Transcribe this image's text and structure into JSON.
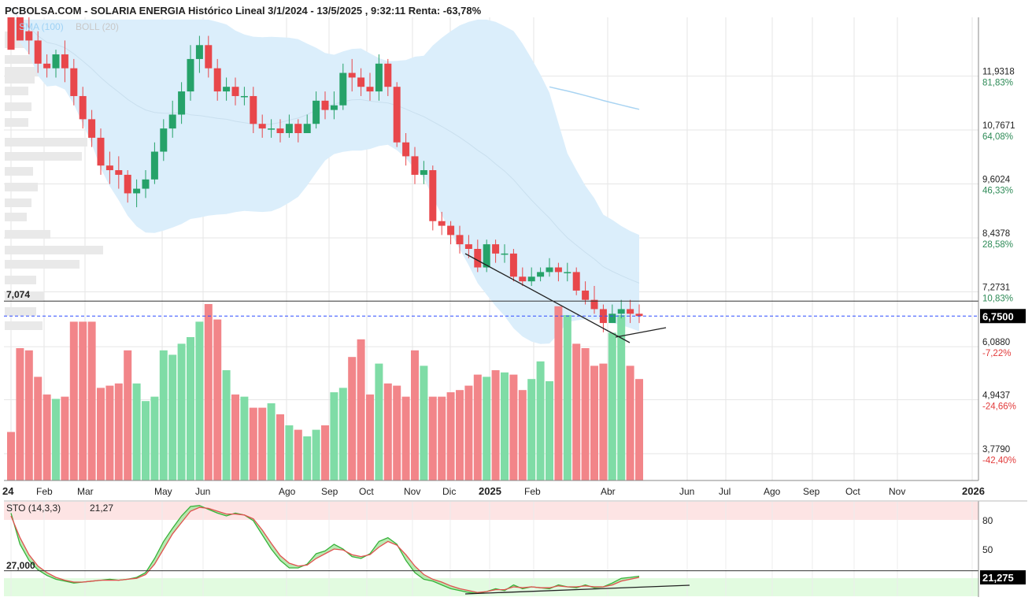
{
  "title": "PCBOLSA.COM - SOLARIA ENERGIA Histórico Lineal 3/1/2024 - 13/5/2025 , 9:32:11 Renta: -63,78%",
  "indicator_legend": {
    "sma": "SMA (100)",
    "boll": "BOLL (20)"
  },
  "colors": {
    "up": "#26a269",
    "down": "#e8474b",
    "vol_up": "#7fdca6",
    "vol_down": "#f28589",
    "boll_fill": "#dbeefb",
    "sma_line": "#a9d4f2",
    "current_line": "#2f4bff",
    "stoch_k": "#38b23a",
    "stoch_d": "#e25050",
    "overbought_fill": "#fde4e4",
    "oversold_fill": "#e2fbe0",
    "pct_pos": "#2e8b57",
    "pct_neg": "#e23b3b"
  },
  "price_axis": [
    {
      "price": "11,9318",
      "pct": "81,83%"
    },
    {
      "price": "10,7671",
      "pct": "64,08%"
    },
    {
      "price": "9,6024",
      "pct": "46,33%"
    },
    {
      "price": "8,4378",
      "pct": "28,58%"
    },
    {
      "price": "7,2731",
      "pct": "10,83%"
    },
    {
      "price": "6,0880",
      "pct": "-7,22%"
    },
    {
      "price": "4,9437",
      "pct": "-24,66%"
    },
    {
      "price": "3,7790",
      "pct": "-42,40%"
    }
  ],
  "reference_line_label": "7,074",
  "current_price_label": "6,7500",
  "time_axis": [
    {
      "label": "24",
      "bold": true
    },
    {
      "label": "Feb"
    },
    {
      "label": "Mar"
    },
    {
      "label": "May"
    },
    {
      "label": "Jun"
    },
    {
      "label": "Ago"
    },
    {
      "label": "Sep"
    },
    {
      "label": "Oct"
    },
    {
      "label": "Nov"
    },
    {
      "label": "Dic"
    },
    {
      "label": "2025",
      "bold": true
    },
    {
      "label": "Feb"
    },
    {
      "label": "Abr"
    },
    {
      "label": "Jun"
    },
    {
      "label": "Jul"
    },
    {
      "label": "Ago"
    },
    {
      "label": "Sep"
    },
    {
      "label": "Oct"
    },
    {
      "label": "Nov"
    },
    {
      "label": "2026",
      "bold": true
    }
  ],
  "stoch": {
    "legend": "STO (14,3,3)",
    "legend_value": "21,27",
    "levels": [
      "80",
      "50"
    ],
    "ref_label": "27,000",
    "current_label": "21,275"
  },
  "chart_data": {
    "type": "candlestick",
    "interval": "weekly",
    "x": [
      "2024-01-05",
      "2024-01-12",
      "2024-01-19",
      "2024-01-26",
      "2024-02-02",
      "2024-02-09",
      "2024-02-16",
      "2024-02-23",
      "2024-03-01",
      "2024-03-08",
      "2024-03-15",
      "2024-03-22",
      "2024-03-29",
      "2024-04-05",
      "2024-04-12",
      "2024-04-19",
      "2024-04-26",
      "2024-05-03",
      "2024-05-10",
      "2024-05-17",
      "2024-05-24",
      "2024-05-31",
      "2024-06-07",
      "2024-06-14",
      "2024-06-21",
      "2024-06-28",
      "2024-07-05",
      "2024-07-12",
      "2024-07-19",
      "2024-07-26",
      "2024-08-02",
      "2024-08-09",
      "2024-08-16",
      "2024-08-23",
      "2024-08-30",
      "2024-09-06",
      "2024-09-13",
      "2024-09-20",
      "2024-09-27",
      "2024-10-04",
      "2024-10-11",
      "2024-10-18",
      "2024-10-25",
      "2024-11-01",
      "2024-11-08",
      "2024-11-15",
      "2024-11-22",
      "2024-11-29",
      "2024-12-06",
      "2024-12-13",
      "2024-12-20",
      "2024-12-27",
      "2025-01-03",
      "2025-01-10",
      "2025-01-17",
      "2025-01-24",
      "2025-01-31",
      "2025-02-07",
      "2025-02-14",
      "2025-02-21",
      "2025-02-28",
      "2025-03-07",
      "2025-03-14",
      "2025-03-21",
      "2025-03-28",
      "2025-04-04",
      "2025-04-11",
      "2025-04-18",
      "2025-04-25",
      "2025-05-02",
      "2025-05-09"
    ],
    "series": [
      {
        "name": "SOLARIA ENERGIA",
        "open": [
          14.1,
          13.4,
          12.9,
          12.7,
          12.2,
          12.1,
          12.4,
          12.1,
          11.5,
          11.0,
          10.6,
          10.0,
          9.9,
          9.8,
          9.4,
          9.5,
          9.7,
          10.3,
          10.8,
          11.1,
          11.6,
          12.3,
          12.6,
          12.1,
          11.6,
          11.7,
          11.5,
          11.5,
          10.9,
          10.8,
          10.8,
          10.7,
          10.9,
          10.7,
          10.9,
          11.4,
          11.2,
          11.3,
          12.0,
          11.9,
          11.7,
          11.6,
          12.2,
          11.7,
          10.5,
          10.2,
          9.8,
          9.9,
          8.8,
          8.7,
          8.5,
          8.3,
          8.2,
          7.8,
          8.3,
          8.1,
          8.1,
          7.6,
          7.5,
          7.6,
          7.7,
          7.8,
          7.7,
          7.7,
          7.3,
          7.1,
          6.9,
          6.6,
          6.8,
          6.9,
          6.8
        ],
        "close": [
          13.4,
          12.9,
          12.7,
          12.2,
          12.1,
          12.4,
          12.1,
          11.5,
          11.0,
          10.6,
          10.0,
          9.9,
          9.8,
          9.4,
          9.5,
          9.7,
          10.3,
          10.8,
          11.1,
          11.6,
          12.3,
          12.6,
          12.1,
          11.6,
          11.7,
          11.5,
          11.5,
          10.9,
          10.8,
          10.8,
          10.7,
          10.9,
          10.7,
          10.9,
          11.4,
          11.2,
          11.3,
          12.0,
          11.9,
          11.7,
          11.6,
          12.2,
          11.7,
          10.5,
          10.2,
          9.8,
          9.9,
          8.8,
          8.7,
          8.5,
          8.3,
          8.2,
          7.8,
          8.3,
          8.1,
          8.1,
          7.6,
          7.5,
          7.6,
          7.7,
          7.8,
          7.7,
          7.7,
          7.3,
          7.1,
          6.9,
          6.6,
          6.8,
          6.9,
          6.8,
          6.75
        ],
        "high": [
          14.3,
          13.6,
          13.2,
          12.9,
          12.4,
          12.5,
          12.7,
          12.3,
          11.7,
          11.2,
          10.8,
          10.3,
          10.2,
          9.9,
          9.7,
          9.9,
          10.5,
          11.0,
          11.4,
          11.8,
          12.6,
          12.8,
          12.8,
          12.3,
          11.9,
          11.9,
          11.7,
          11.7,
          11.1,
          11.0,
          11.0,
          11.1,
          11.0,
          11.1,
          11.6,
          11.6,
          11.6,
          12.2,
          12.3,
          12.1,
          12.0,
          12.4,
          12.3,
          11.8,
          10.7,
          10.4,
          10.1,
          10.0,
          9.0,
          8.8,
          8.7,
          8.5,
          8.4,
          8.4,
          8.4,
          8.3,
          8.2,
          7.8,
          7.8,
          7.8,
          8.0,
          7.9,
          7.9,
          7.8,
          7.5,
          7.4,
          7.0,
          7.0,
          7.1,
          7.1,
          7.0
        ],
        "low": [
          13.2,
          12.7,
          12.4,
          12.0,
          11.9,
          11.9,
          11.8,
          11.3,
          10.8,
          10.4,
          9.8,
          9.6,
          9.5,
          9.2,
          9.1,
          9.3,
          9.6,
          10.1,
          10.6,
          10.9,
          11.4,
          12.0,
          11.9,
          11.4,
          11.4,
          11.3,
          11.3,
          10.7,
          10.6,
          10.6,
          10.5,
          10.6,
          10.5,
          10.7,
          10.8,
          11.0,
          11.0,
          11.2,
          11.6,
          11.5,
          11.4,
          11.4,
          11.5,
          10.4,
          10.0,
          9.6,
          9.6,
          8.6,
          8.5,
          8.3,
          8.1,
          8.0,
          7.7,
          7.7,
          7.9,
          7.9,
          7.5,
          7.4,
          7.4,
          7.5,
          7.6,
          7.5,
          7.5,
          7.2,
          7.0,
          6.8,
          6.4,
          6.6,
          6.7,
          6.6,
          6.6
        ],
        "volume_relative": [
          0.22,
          0.6,
          0.59,
          0.47,
          0.39,
          0.37,
          0.38,
          0.72,
          0.72,
          0.72,
          0.42,
          0.43,
          0.44,
          0.59,
          0.44,
          0.36,
          0.38,
          0.59,
          0.57,
          0.62,
          0.65,
          0.72,
          0.8,
          0.73,
          0.5,
          0.39,
          0.38,
          0.33,
          0.33,
          0.35,
          0.3,
          0.25,
          0.23,
          0.2,
          0.23,
          0.25,
          0.4,
          0.42,
          0.56,
          0.64,
          0.39,
          0.53,
          0.44,
          0.43,
          0.38,
          0.59,
          0.52,
          0.38,
          0.38,
          0.4,
          0.41,
          0.43,
          0.48,
          0.47,
          0.5,
          0.49,
          0.48,
          0.41,
          0.46,
          0.54,
          0.45,
          0.79,
          0.75,
          0.62,
          0.6,
          0.52,
          0.53,
          0.67,
          0.75,
          0.52,
          0.46
        ]
      }
    ],
    "overlays": [
      "SMA (100)",
      "BOLL (20)"
    ],
    "ylim": [
      3.2,
      13.2
    ],
    "reference_level": 7.074,
    "last_price": 6.75,
    "stochastic": {
      "name": "STO (14,3,3)",
      "k": [
        88,
        55,
        38,
        28,
        22,
        18,
        16,
        14,
        15,
        16,
        17,
        18,
        17,
        18,
        20,
        25,
        40,
        58,
        72,
        85,
        95,
        96,
        92,
        88,
        85,
        88,
        86,
        80,
        65,
        50,
        38,
        30,
        30,
        34,
        45,
        48,
        55,
        50,
        42,
        40,
        45,
        58,
        62,
        55,
        38,
        25,
        18,
        16,
        12,
        8,
        6,
        4,
        3,
        5,
        8,
        6,
        12,
        8,
        10,
        9,
        8,
        12,
        10,
        9,
        12,
        9,
        10,
        14,
        19,
        20,
        21.27
      ],
      "d": [
        85,
        62,
        44,
        32,
        25,
        20,
        17,
        15,
        15,
        16,
        17,
        17,
        17,
        18,
        19,
        23,
        34,
        50,
        66,
        78,
        90,
        94,
        93,
        90,
        87,
        87,
        86,
        82,
        70,
        56,
        43,
        35,
        32,
        33,
        40,
        45,
        50,
        49,
        44,
        42,
        44,
        52,
        58,
        54,
        44,
        32,
        23,
        18,
        15,
        11,
        8,
        6,
        4,
        5,
        7,
        7,
        10,
        9,
        10,
        9,
        9,
        11,
        10,
        10,
        11,
        10,
        10,
        12,
        16,
        18,
        20
      ],
      "ylim": [
        0,
        100
      ],
      "levels": [
        80,
        50
      ],
      "reference_level": 27.0,
      "last_value": 21.275
    }
  }
}
